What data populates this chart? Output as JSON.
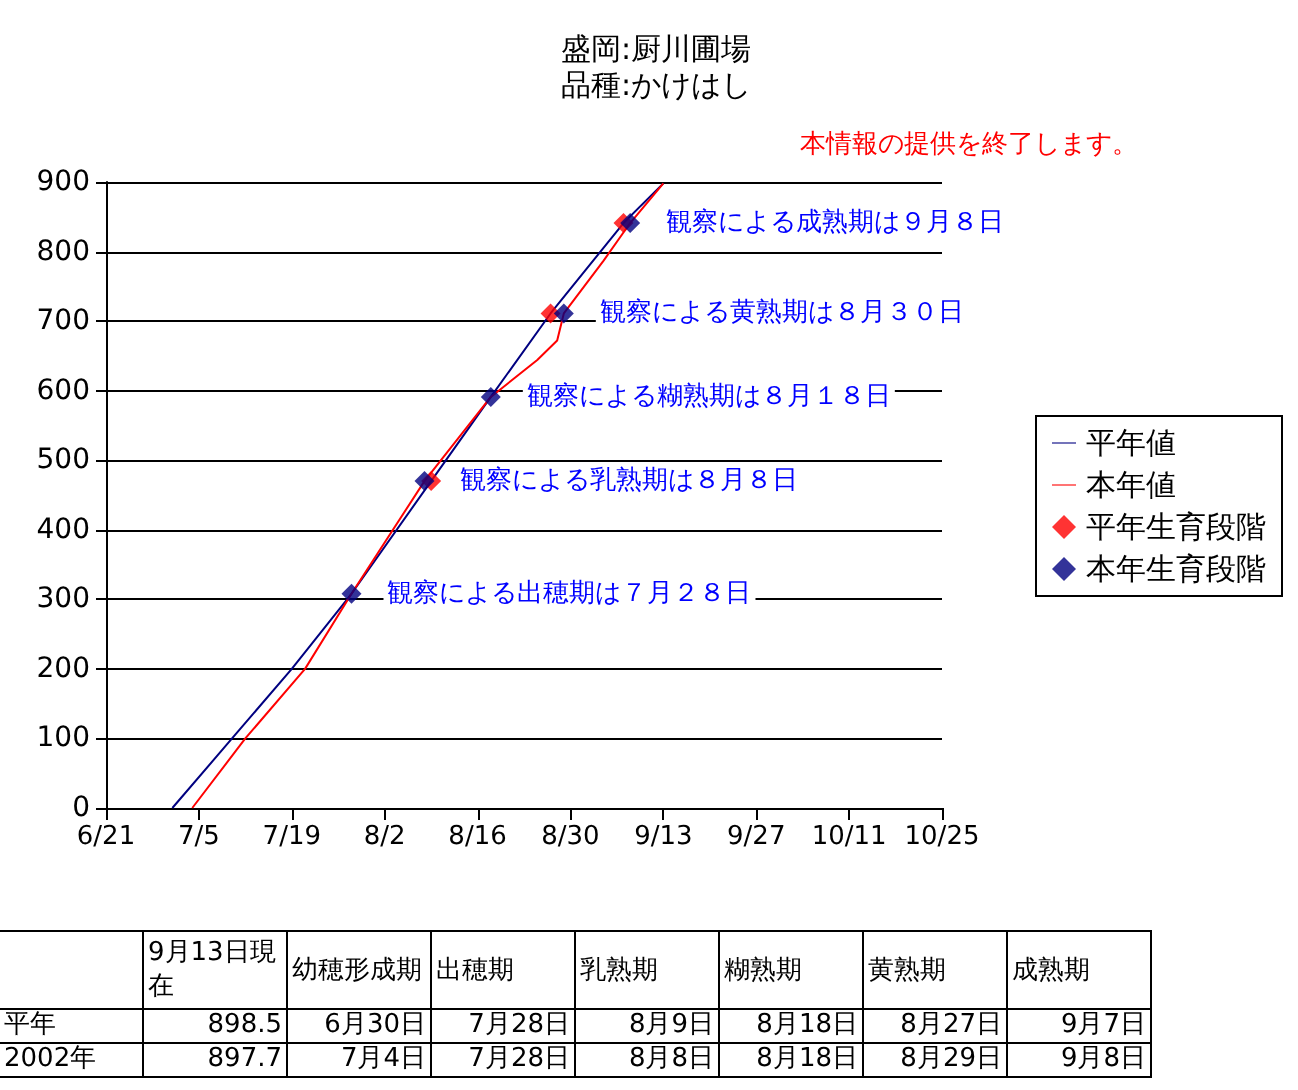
{
  "chart_data": [
    {
      "type": "line",
      "title": "盛岡:厨川圃場",
      "subtitle": "品種:かけはし",
      "series": [
        {
          "name": "平年値",
          "type": "line",
          "color": "#000080",
          "x": [
            "--07-01",
            "--07-10",
            "--07-19",
            "--07-28",
            "--08-09",
            "--08-18",
            "--08-27",
            "--09-07",
            "--09-13"
          ],
          "values": [
            0,
            100,
            200,
            308,
            470,
            591,
            711,
            841,
            898
          ]
        },
        {
          "name": "本年値",
          "type": "line",
          "color": "#ff0000",
          "x": [
            "--07-04",
            "--07-12",
            "--07-21",
            "--07-28",
            "--08-08",
            "--08-18",
            "--08-25",
            "--08-28",
            "--08-29",
            "--09-04",
            "--09-08",
            "--09-13"
          ],
          "values": [
            0,
            100,
            200,
            308,
            470,
            591,
            644,
            672,
            711,
            787,
            841,
            898
          ]
        },
        {
          "name": "平年生育段階",
          "type": "scatter",
          "marker": "diamond",
          "color": "#ff0000",
          "x": [
            "--08-09",
            "--08-27",
            "--09-07"
          ],
          "values": [
            470,
            711,
            841
          ]
        },
        {
          "name": "本年生育段階",
          "type": "scatter",
          "marker": "diamond",
          "color": "#000080",
          "x": [
            "--07-28",
            "--08-08",
            "--08-18",
            "--08-29",
            "--09-08"
          ],
          "values": [
            308,
            470,
            591,
            711,
            841
          ]
        }
      ],
      "xlim": [
        "--06-21",
        "--10-25"
      ],
      "xticks": [
        {
          "value": "--06-21",
          "label": "6/21"
        },
        {
          "value": "--07-05",
          "label": "7/5"
        },
        {
          "value": "--07-19",
          "label": "7/19"
        },
        {
          "value": "--08-02",
          "label": "8/2"
        },
        {
          "value": "--08-16",
          "label": "8/16"
        },
        {
          "value": "--08-30",
          "label": "8/30"
        },
        {
          "value": "--09-13",
          "label": "9/13"
        },
        {
          "value": "--09-27",
          "label": "9/27"
        },
        {
          "value": "--10-11",
          "label": "10/11"
        },
        {
          "value": "--10-25",
          "label": "10/25"
        }
      ],
      "ylim": [
        0,
        900
      ],
      "yticks": [
        0,
        100,
        200,
        300,
        400,
        500,
        600,
        700,
        800,
        900
      ],
      "grid": "y",
      "legend": "right",
      "marker": "none",
      "line_style": "solid",
      "annotations": [
        {
          "text": "観察による成熟期は９月８日",
          "x": "--09-08",
          "y": 841
        },
        {
          "text": "観察による黄熟期は８月３０日",
          "x": "--08-29",
          "y": 711
        },
        {
          "text": "観察による糊熟期は８月１８日",
          "x": "--08-18",
          "y": 591
        },
        {
          "text": "観察による乳熟期は８月８日",
          "x": "--08-08",
          "y": 470
        },
        {
          "text": "観察による出穂期は７月２８日",
          "x": "--07-28",
          "y": 308
        },
        "本情報の提供を終了します。"
      ]
    },
    {
      "type": "other",
      "categories": [
        null,
        "9月13日現在",
        "幼穂形成期",
        "出穂期",
        "乳熟期",
        "糊熟期",
        "黄熟期",
        "成熟期"
      ],
      "y_categories": [
        "平年",
        "2002年"
      ],
      "cell_labels": [
        [
          "898.5",
          "6月30日",
          "7月28日",
          "8月9日",
          "8月18日",
          "8月27日",
          "9月7日"
        ],
        [
          "897.7",
          "7月4日",
          "7月28日",
          "8月8日",
          "8月18日",
          "8月29日",
          "9月8日"
        ]
      ]
    }
  ]
}
